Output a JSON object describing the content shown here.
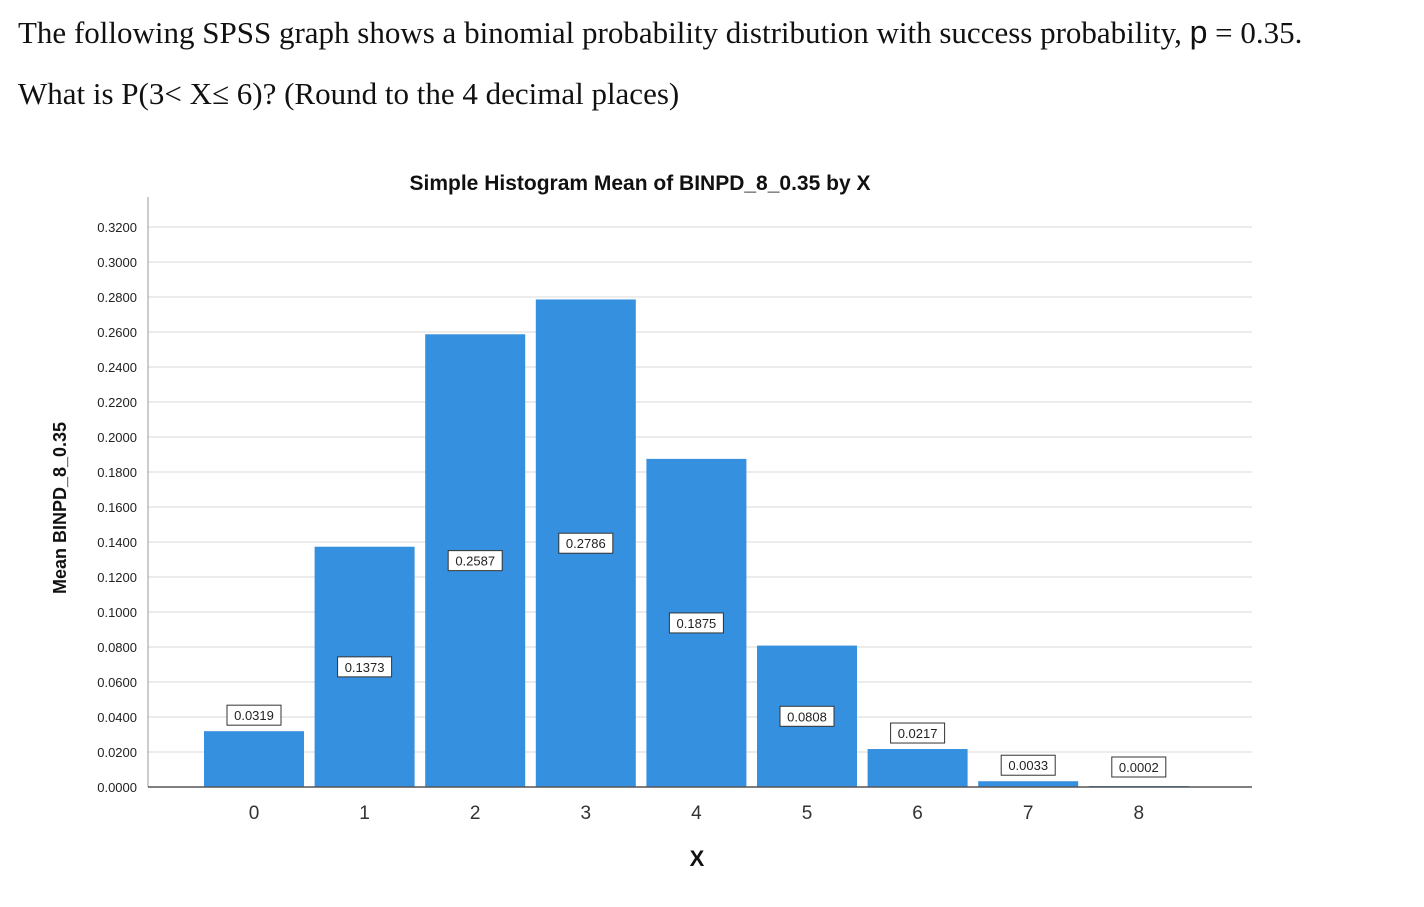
{
  "question": {
    "line1_pre": "The following SPSS graph shows a binomial probability distribution with success probability,",
    "p_symbol": "p",
    "line1_post": "= 0.35.",
    "line2": "What is P(3< X≤ 6)? (Round to the 4 decimal places)"
  },
  "chart_data": {
    "type": "bar",
    "title": "Simple Histogram Mean of BINPD_8_0.35 by X",
    "xlabel": "X",
    "ylabel": "Mean BINPD_8_0.35",
    "categories": [
      "0",
      "1",
      "2",
      "3",
      "4",
      "5",
      "6",
      "7",
      "8"
    ],
    "values": [
      0.0319,
      0.1373,
      0.2587,
      0.2786,
      0.1875,
      0.0808,
      0.0217,
      0.0033,
      0.0002
    ],
    "data_labels": [
      "0.0319",
      "0.1373",
      "0.2587",
      "0.2786",
      "0.1875",
      "0.0808",
      "0.0217",
      "0.0033",
      "0.0002"
    ],
    "ylim": [
      0,
      0.32
    ],
    "yticks": [
      "0.0000",
      "0.0200",
      "0.0400",
      "0.0600",
      "0.0800",
      "0.1000",
      "0.1200",
      "0.1400",
      "0.1600",
      "0.1800",
      "0.2000",
      "0.2200",
      "0.2400",
      "0.2600",
      "0.2800",
      "0.3000",
      "0.3200"
    ],
    "grid": true,
    "legend": false,
    "bar_color": "#3690e0"
  }
}
